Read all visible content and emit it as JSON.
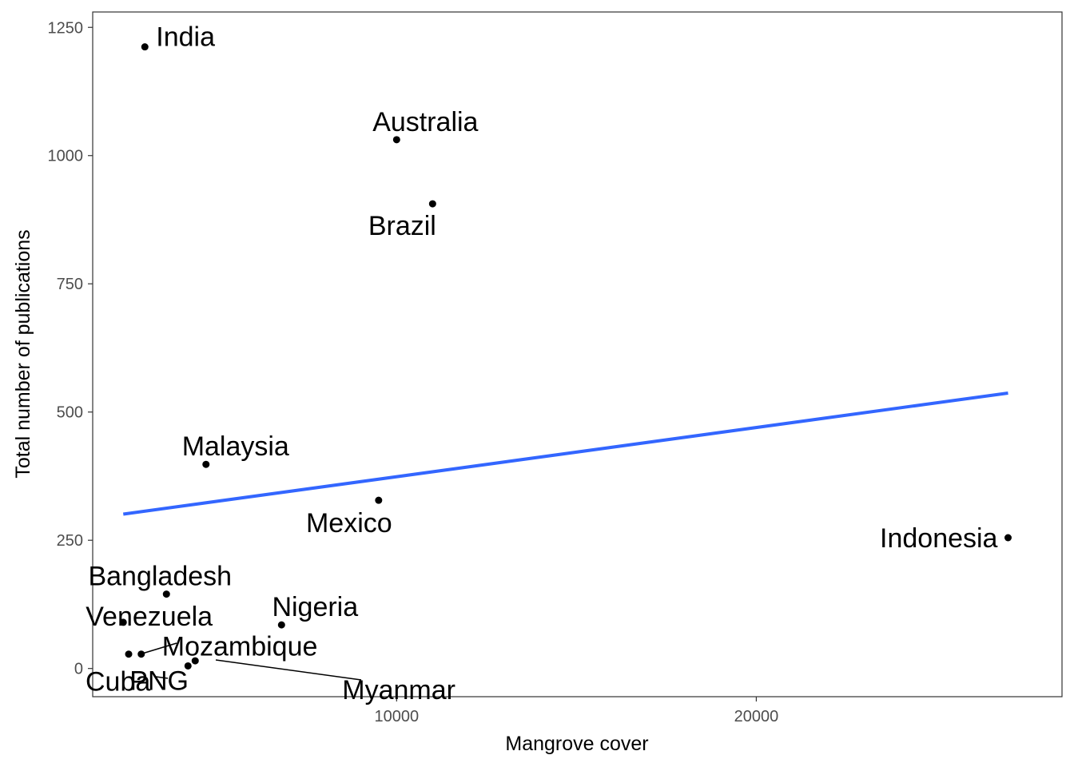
{
  "chart_data": {
    "type": "scatter",
    "xlabel": "Mangrove cover",
    "ylabel": "Total number of publications",
    "xlim": [
      1550,
      28500
    ],
    "ylim": [
      -55,
      1280
    ],
    "x_ticks": [
      10000,
      20000
    ],
    "y_ticks": [
      0,
      250,
      500,
      750,
      1000,
      1250
    ],
    "grid": false,
    "points": [
      {
        "label": "India",
        "x": 3000,
        "y": 1212
      },
      {
        "label": "Australia",
        "x": 10000,
        "y": 1031
      },
      {
        "label": "Brazil",
        "x": 11000,
        "y": 906
      },
      {
        "label": "Malaysia",
        "x": 4700,
        "y": 398
      },
      {
        "label": "Mexico",
        "x": 9500,
        "y": 328
      },
      {
        "label": "Indonesia",
        "x": 27000,
        "y": 255
      },
      {
        "label": "Bangladesh",
        "x": 3600,
        "y": 145
      },
      {
        "label": "Venezuela",
        "x": 2400,
        "y": 90
      },
      {
        "label": "Nigeria",
        "x": 6800,
        "y": 85
      },
      {
        "label": "Mozambique",
        "x": 2900,
        "y": 28
      },
      {
        "label": "Myanmar",
        "x": 4400,
        "y": 15
      },
      {
        "label": "Cuba",
        "x": 2550,
        "y": 28
      },
      {
        "label": "PNG",
        "x": 4200,
        "y": 5
      }
    ],
    "fit_line": {
      "type": "linear",
      "x": [
        2400,
        27000
      ],
      "y": [
        301,
        537
      ],
      "color": "#3366FF"
    },
    "point_color": "#000000"
  }
}
